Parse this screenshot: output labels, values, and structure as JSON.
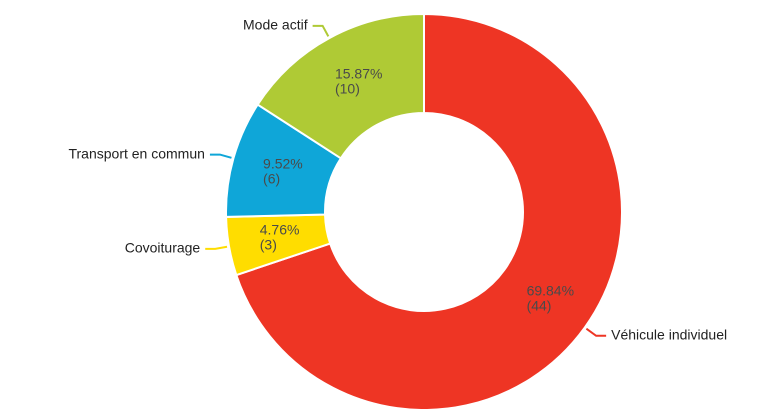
{
  "chart_data": {
    "type": "donut",
    "categories": [
      "Véhicule individuel",
      "Covoiturage",
      "Transport en commun",
      "Mode actif"
    ],
    "values": [
      44,
      3,
      6,
      10
    ],
    "value_labels": [
      "(44)",
      "(3)",
      "(6)",
      "(10)"
    ],
    "percentages": [
      69.84,
      4.76,
      9.52,
      15.87
    ],
    "percentage_labels": [
      "69.84%",
      "4.76%",
      "9.52%",
      "15.87%"
    ],
    "colors": [
      "#ee3524",
      "#ffdd00",
      "#0fa6d8",
      "#afca35"
    ]
  }
}
